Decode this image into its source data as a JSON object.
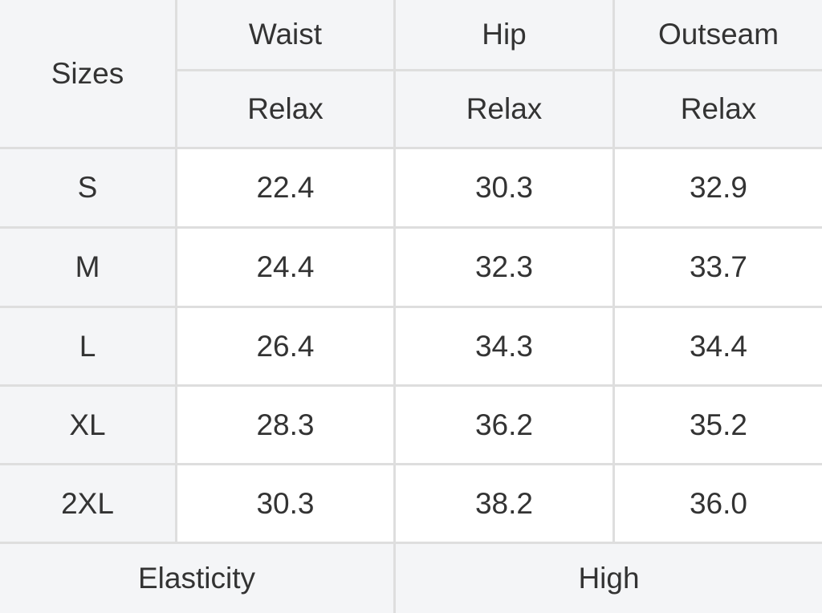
{
  "table": {
    "corner_label": "Sizes",
    "columns": [
      {
        "label": "Waist",
        "sub": "Relax"
      },
      {
        "label": "Hip",
        "sub": "Relax"
      },
      {
        "label": "Outseam",
        "sub": "Relax"
      }
    ],
    "rows": [
      {
        "size": "S",
        "values": [
          "22.4",
          "30.3",
          "32.9"
        ]
      },
      {
        "size": "M",
        "values": [
          "24.4",
          "32.3",
          "33.7"
        ]
      },
      {
        "size": "L",
        "values": [
          "26.4",
          "34.3",
          "34.4"
        ]
      },
      {
        "size": "XL",
        "values": [
          "28.3",
          "36.2",
          "35.2"
        ]
      },
      {
        "size": "2XL",
        "values": [
          "30.3",
          "38.2",
          "36.0"
        ]
      }
    ],
    "footer": {
      "label": "Elasticity",
      "value": "High"
    }
  },
  "colors": {
    "header_bg": "#f4f5f7",
    "border": "#dedede",
    "text": "#333333"
  }
}
